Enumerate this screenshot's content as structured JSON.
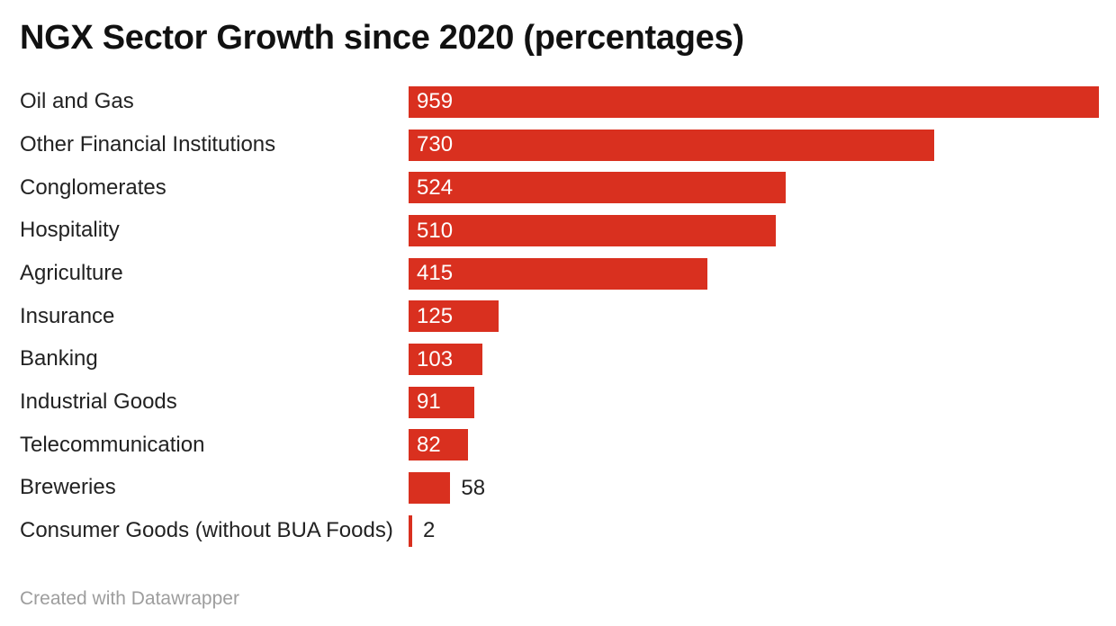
{
  "header": {
    "title": "NGX Sector Growth since 2020 (percentages)"
  },
  "footer": {
    "attribution": "Created with Datawrapper"
  },
  "colors": {
    "background": "#ffffff",
    "bar": "#d9301f",
    "title": "#111111",
    "category_label": "#222222",
    "value_label_inside": "#ffffff",
    "value_label_outside": "#222222",
    "attribution": "#9d9d9d"
  },
  "chart_data": {
    "type": "bar",
    "orientation": "horizontal",
    "title": "NGX Sector Growth since 2020 (percentages)",
    "xlabel": "",
    "ylabel": "",
    "xlim": [
      0,
      959
    ],
    "grid": false,
    "legend": false,
    "sorted": "descending",
    "categories": [
      "Oil and Gas",
      "Other Financial Institutions",
      "Conglomerates",
      "Hospitality",
      "Agriculture",
      "Insurance",
      "Banking",
      "Industrial Goods",
      "Telecommunication",
      "Breweries",
      "Consumer Goods (without BUA Foods)"
    ],
    "values": [
      959,
      730,
      524,
      510,
      415,
      125,
      103,
      91,
      82,
      58,
      2
    ],
    "value_label_positions": [
      "inside",
      "inside",
      "inside",
      "inside",
      "inside",
      "inside",
      "inside",
      "inside",
      "inside",
      "outside",
      "outside"
    ]
  }
}
